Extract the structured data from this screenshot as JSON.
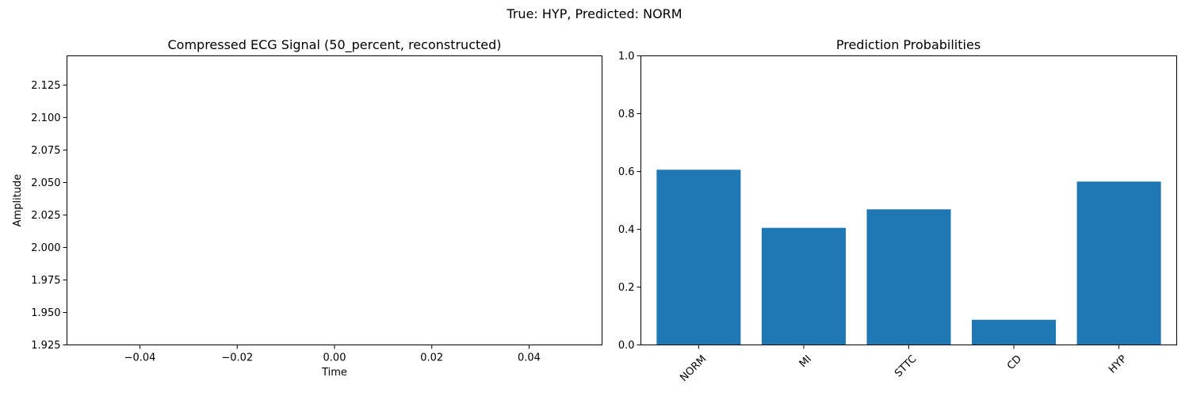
{
  "figure": {
    "suptitle": "True: HYP, Predicted: NORM"
  },
  "chart_data": [
    {
      "type": "line",
      "title": "Compressed ECG Signal (50_percent, reconstructed)",
      "xlabel": "Time",
      "ylabel": "Amplitude",
      "xlim": [
        -0.055,
        0.055
      ],
      "ylim": [
        1.925,
        2.1475
      ],
      "xticks": [
        -0.04,
        -0.02,
        0.0,
        0.02,
        0.04
      ],
      "xtick_labels": [
        "−0.04",
        "−0.02",
        "0.00",
        "0.02",
        "0.04"
      ],
      "yticks": [
        1.925,
        1.95,
        1.975,
        2.0,
        2.025,
        2.05,
        2.075,
        2.1,
        2.125
      ],
      "ytick_labels": [
        "1.925",
        "1.950",
        "1.975",
        "2.000",
        "2.025",
        "2.050",
        "2.075",
        "2.100",
        "2.125"
      ],
      "series": [],
      "grid": false
    },
    {
      "type": "bar",
      "title": "Prediction Probabilities",
      "categories": [
        "NORM",
        "MI",
        "STTC",
        "CD",
        "HYP"
      ],
      "values": [
        0.606,
        0.405,
        0.469,
        0.087,
        0.565
      ],
      "ylim": [
        0,
        1.0
      ],
      "yticks": [
        0.0,
        0.2,
        0.4,
        0.6,
        0.8,
        1.0
      ],
      "ytick_labels": [
        "0.0",
        "0.2",
        "0.4",
        "0.6",
        "0.8",
        "1.0"
      ],
      "xtick_rotation": 45,
      "bar_color": "#1f77b4",
      "grid": false
    }
  ]
}
